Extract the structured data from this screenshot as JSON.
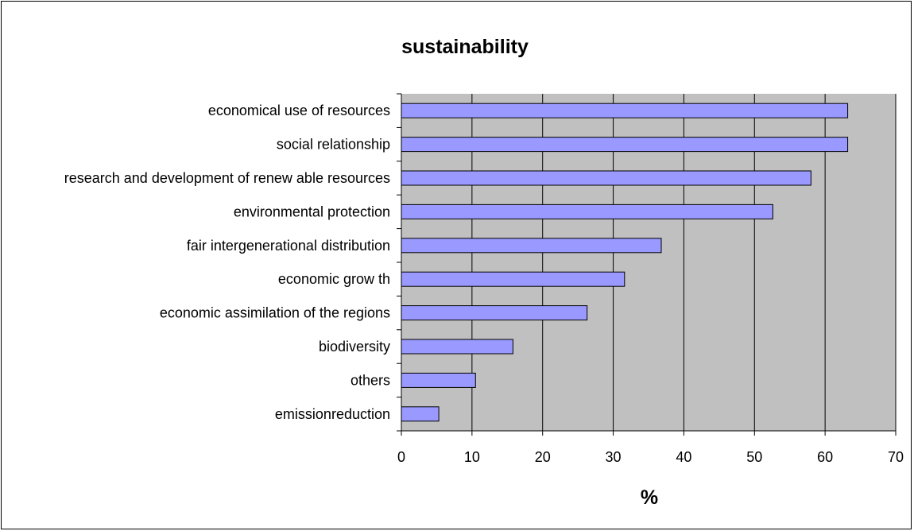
{
  "chart_data": {
    "type": "bar",
    "orientation": "horizontal",
    "title": "sustainability",
    "xlabel": "%",
    "ylabel": "",
    "xlim": [
      0,
      70
    ],
    "x_ticks": [
      0,
      10,
      20,
      30,
      40,
      50,
      60,
      70
    ],
    "grid": true,
    "legend": "none",
    "categories": [
      "economical use of resources",
      "social relationship",
      "research and development of renew able resources",
      "environmental protection",
      "fair intergenerational distribution",
      "economic grow th",
      "economic assimilation of the regions",
      "biodiversity",
      "others",
      "emissionreduction"
    ],
    "values": [
      63.2,
      63.2,
      58.0,
      52.6,
      36.8,
      31.6,
      26.3,
      15.8,
      10.5,
      5.3
    ],
    "colors": {
      "bar_fill": "#9999ff",
      "bar_stroke": "#000000",
      "plot_background": "#c0c0c0",
      "grid": "#000000"
    }
  }
}
